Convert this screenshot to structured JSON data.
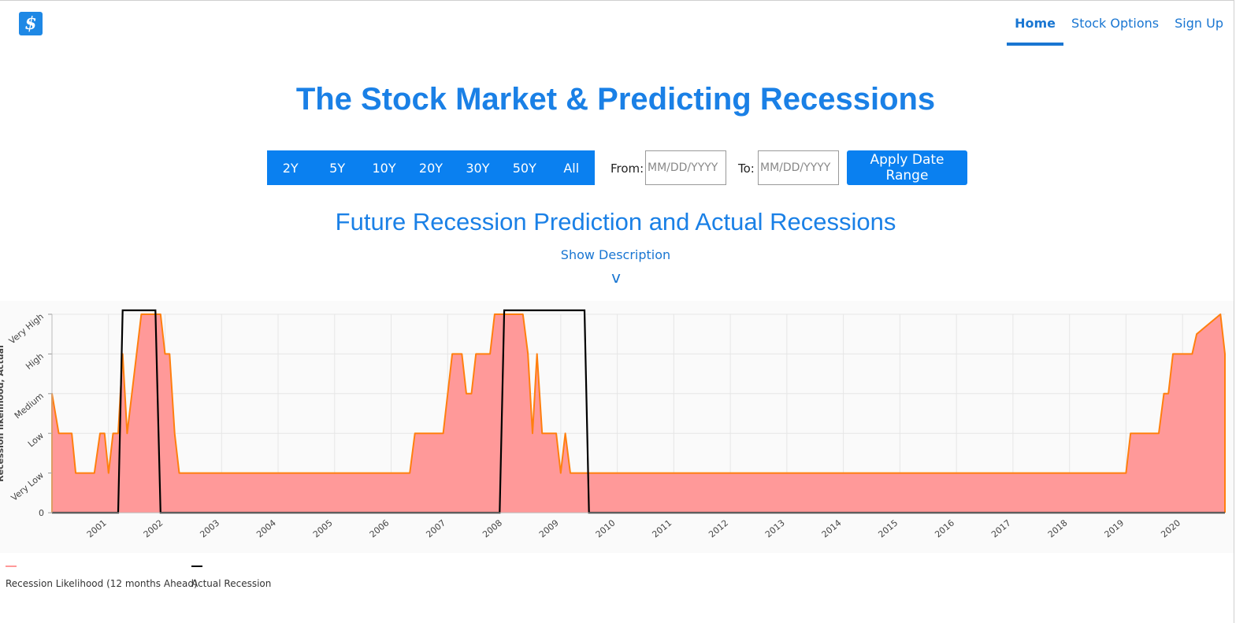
{
  "header": {
    "logo_glyph": "$",
    "nav": [
      {
        "label": "Home",
        "active": true
      },
      {
        "label": "Stock Options",
        "active": false
      },
      {
        "label": "Sign Up",
        "active": false
      }
    ]
  },
  "page_title": "The Stock Market & Predicting Recessions",
  "range_buttons": [
    "2Y",
    "5Y",
    "10Y",
    "20Y",
    "30Y",
    "50Y",
    "All"
  ],
  "date_filter": {
    "from_label": "From:",
    "to_label": "To:",
    "from_placeholder": "MM/DD/YYYY",
    "to_placeholder": "MM/DD/YYYY",
    "from_value": "",
    "to_value": "",
    "apply_label": "Apply Date Range"
  },
  "chart_section": {
    "title": "Future Recession Prediction and Actual Recessions",
    "show_description": "Show Description",
    "expand_glyph": "v"
  },
  "colors": {
    "accent": "#1a80e6",
    "button_blue": "#0a80f0",
    "likelihood_line": "#ff7f0e",
    "likelihood_fill": "#ff9999",
    "recession_line": "#000000",
    "plot_bg": "#fafafa"
  },
  "chart_data": {
    "type": "area",
    "title": "",
    "xlabel": "",
    "ylabel": "Recession likelihood, Actual",
    "y_tick_labels": [
      "0",
      "Very Low",
      "Low",
      "Medium",
      "High",
      "Very High"
    ],
    "ylim": [
      0,
      5
    ],
    "xlim": [
      2000.0,
      2020.75
    ],
    "x_tick_labels": [
      "2001",
      "2002",
      "2003",
      "2004",
      "2005",
      "2006",
      "2007",
      "2008",
      "2009",
      "2010",
      "2011",
      "2012",
      "2013",
      "2014",
      "2015",
      "2016",
      "2017",
      "2018",
      "2019",
      "2020"
    ],
    "grid": true,
    "legend_position": "bottom-left",
    "series": [
      {
        "name": "Recession Likelihood (12 months Ahead)",
        "style": "filled area",
        "points": [
          [
            2000.0,
            0
          ],
          [
            2000.0,
            3
          ],
          [
            2000.12,
            2
          ],
          [
            2000.35,
            2
          ],
          [
            2000.42,
            1
          ],
          [
            2000.75,
            1
          ],
          [
            2000.85,
            2
          ],
          [
            2000.93,
            2
          ],
          [
            2001.0,
            1
          ],
          [
            2001.08,
            2
          ],
          [
            2001.17,
            2
          ],
          [
            2001.25,
            4
          ],
          [
            2001.33,
            2
          ],
          [
            2001.58,
            5
          ],
          [
            2001.92,
            5
          ],
          [
            2002.0,
            4
          ],
          [
            2002.08,
            4
          ],
          [
            2002.17,
            2
          ],
          [
            2002.25,
            1
          ],
          [
            2006.33,
            1
          ],
          [
            2006.42,
            2
          ],
          [
            2006.92,
            2
          ],
          [
            2007.08,
            4
          ],
          [
            2007.25,
            4
          ],
          [
            2007.33,
            3
          ],
          [
            2007.42,
            3
          ],
          [
            2007.5,
            4
          ],
          [
            2007.75,
            4
          ],
          [
            2007.83,
            5
          ],
          [
            2008.33,
            5
          ],
          [
            2008.42,
            4
          ],
          [
            2008.5,
            2
          ],
          [
            2008.58,
            4
          ],
          [
            2008.67,
            2
          ],
          [
            2008.92,
            2
          ],
          [
            2009.0,
            1
          ],
          [
            2009.08,
            2
          ],
          [
            2009.17,
            1
          ],
          [
            2019.0,
            1
          ],
          [
            2019.08,
            2
          ],
          [
            2019.58,
            2
          ],
          [
            2019.67,
            3
          ],
          [
            2019.75,
            3
          ],
          [
            2019.83,
            4
          ],
          [
            2020.17,
            4
          ],
          [
            2020.25,
            4.5
          ],
          [
            2020.67,
            5
          ],
          [
            2020.75,
            4
          ],
          [
            2020.75,
            0
          ]
        ]
      },
      {
        "name": "Actual Recession",
        "style": "line",
        "points": [
          [
            2000.0,
            0
          ],
          [
            2001.17,
            0
          ],
          [
            2001.25,
            5.1
          ],
          [
            2001.83,
            5.1
          ],
          [
            2001.92,
            0
          ],
          [
            2007.92,
            0
          ],
          [
            2008.0,
            5.1
          ],
          [
            2009.42,
            5.1
          ],
          [
            2009.5,
            0
          ],
          [
            2020.75,
            0
          ]
        ]
      }
    ]
  }
}
